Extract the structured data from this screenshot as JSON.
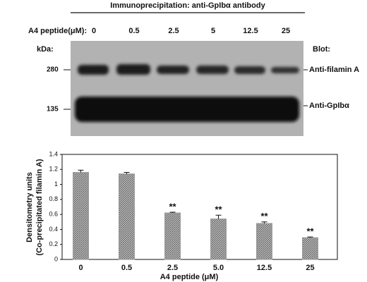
{
  "blot": {
    "title": "Immunoprecipitation: anti-GpIbα antibody",
    "lane_label": "A4 peptide(μM):",
    "lanes": [
      "0",
      "0.5",
      "2.5",
      "5",
      "12.5",
      "25"
    ],
    "kda_label": "kDa:",
    "blot_label": "Blot:",
    "markers": [
      "280",
      "135"
    ],
    "bands": [
      "Anti-filamin A",
      "Anti-GpIbα"
    ]
  },
  "chart_data": {
    "type": "bar",
    "categories": [
      "0",
      "0.5",
      "2.5",
      "5.0",
      "12.5",
      "25"
    ],
    "values": [
      1.16,
      1.14,
      0.62,
      0.54,
      0.48,
      0.29
    ],
    "errors": [
      0.03,
      0.02,
      0.01,
      0.05,
      0.02,
      0.01
    ],
    "annotations": [
      null,
      null,
      "**",
      "**",
      "**",
      "**"
    ],
    "color": "#9a9a9a",
    "ylabel": [
      "Densitometry units",
      "(Co-precipitated filamin A)"
    ],
    "xlabel": "A4 peptide (μM)",
    "ylim": [
      0,
      1.4
    ],
    "yticks": [
      0,
      0.2,
      0.4,
      0.6,
      0.8,
      1,
      1.2,
      1.4
    ]
  }
}
